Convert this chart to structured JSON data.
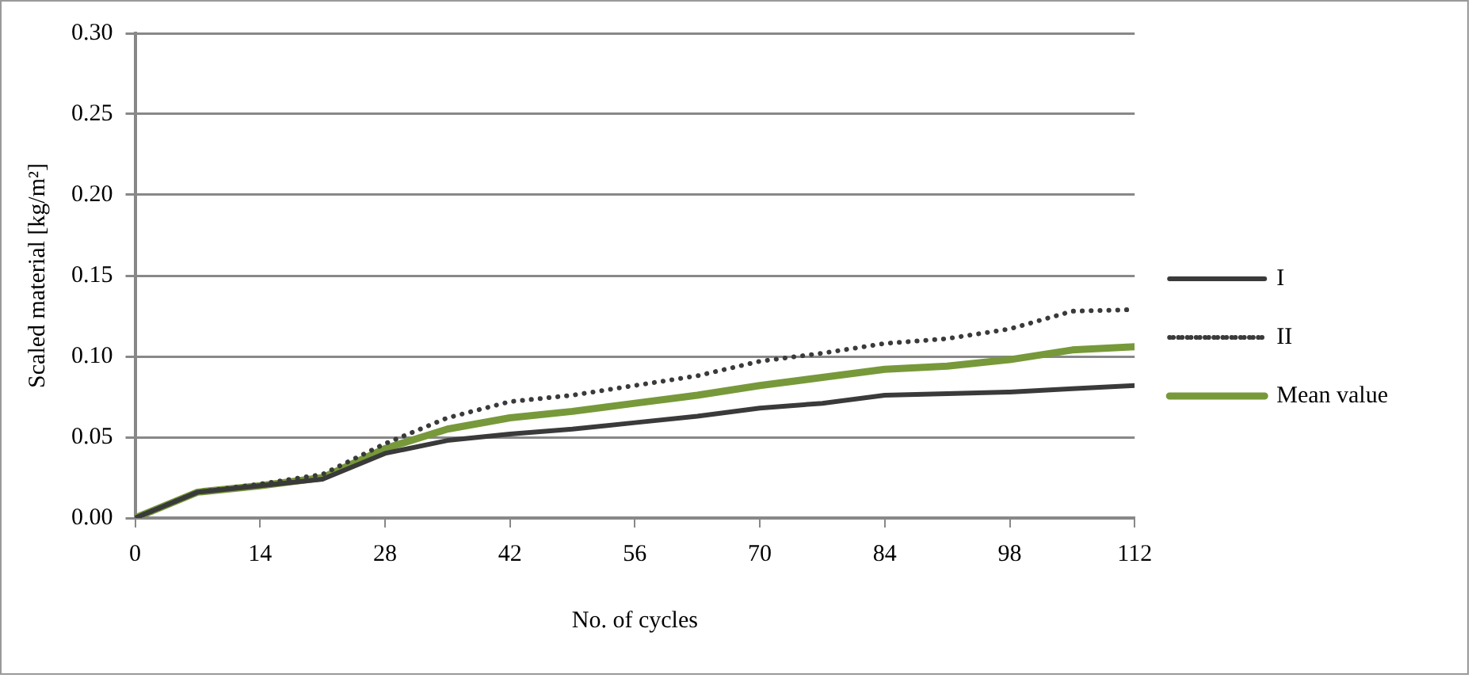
{
  "chart_data": {
    "type": "line",
    "xlabel": "No. of cycles",
    "ylabel": "Scaled material [kg/m²]",
    "x": [
      0,
      7,
      14,
      21,
      28,
      35,
      42,
      49,
      56,
      63,
      70,
      77,
      84,
      91,
      98,
      105,
      112
    ],
    "series": [
      {
        "name": "I",
        "color": "#3a3a3a",
        "line_style": "solid",
        "values": [
          0,
          0.016,
          0.02,
          0.024,
          0.04,
          0.048,
          0.052,
          0.055,
          0.059,
          0.063,
          0.068,
          0.071,
          0.076,
          0.077,
          0.078,
          0.08,
          0.082
        ]
      },
      {
        "name": "II",
        "color": "#3a3a3a",
        "line_style": "dotted",
        "values": [
          0,
          0.016,
          0.021,
          0.027,
          0.046,
          0.062,
          0.072,
          0.076,
          0.082,
          0.088,
          0.097,
          0.102,
          0.108,
          0.111,
          0.117,
          0.128,
          0.129
        ]
      },
      {
        "name": "Mean value",
        "color": "#77993a",
        "line_style": "solid",
        "values": [
          0,
          0.016,
          0.02,
          0.025,
          0.043,
          0.055,
          0.062,
          0.066,
          0.071,
          0.076,
          0.082,
          0.087,
          0.092,
          0.094,
          0.098,
          0.104,
          0.106
        ]
      }
    ],
    "xlim": [
      0,
      112
    ],
    "xticks": [
      0,
      14,
      28,
      42,
      56,
      70,
      84,
      98,
      112
    ],
    "ylim": [
      0,
      0.3
    ],
    "yticks": [
      {
        "value": 0,
        "label": "0.00"
      },
      {
        "value": 0.05,
        "label": "0.05"
      },
      {
        "value": 0.1,
        "label": "0.10"
      },
      {
        "value": 0.15,
        "label": "0.15"
      },
      {
        "value": 0.2,
        "label": "0.20"
      },
      {
        "value": 0.25,
        "label": "0.25"
      },
      {
        "value": 0.3,
        "label": "0.30"
      }
    ],
    "grid": "y",
    "legend": "right",
    "marker": "none"
  }
}
